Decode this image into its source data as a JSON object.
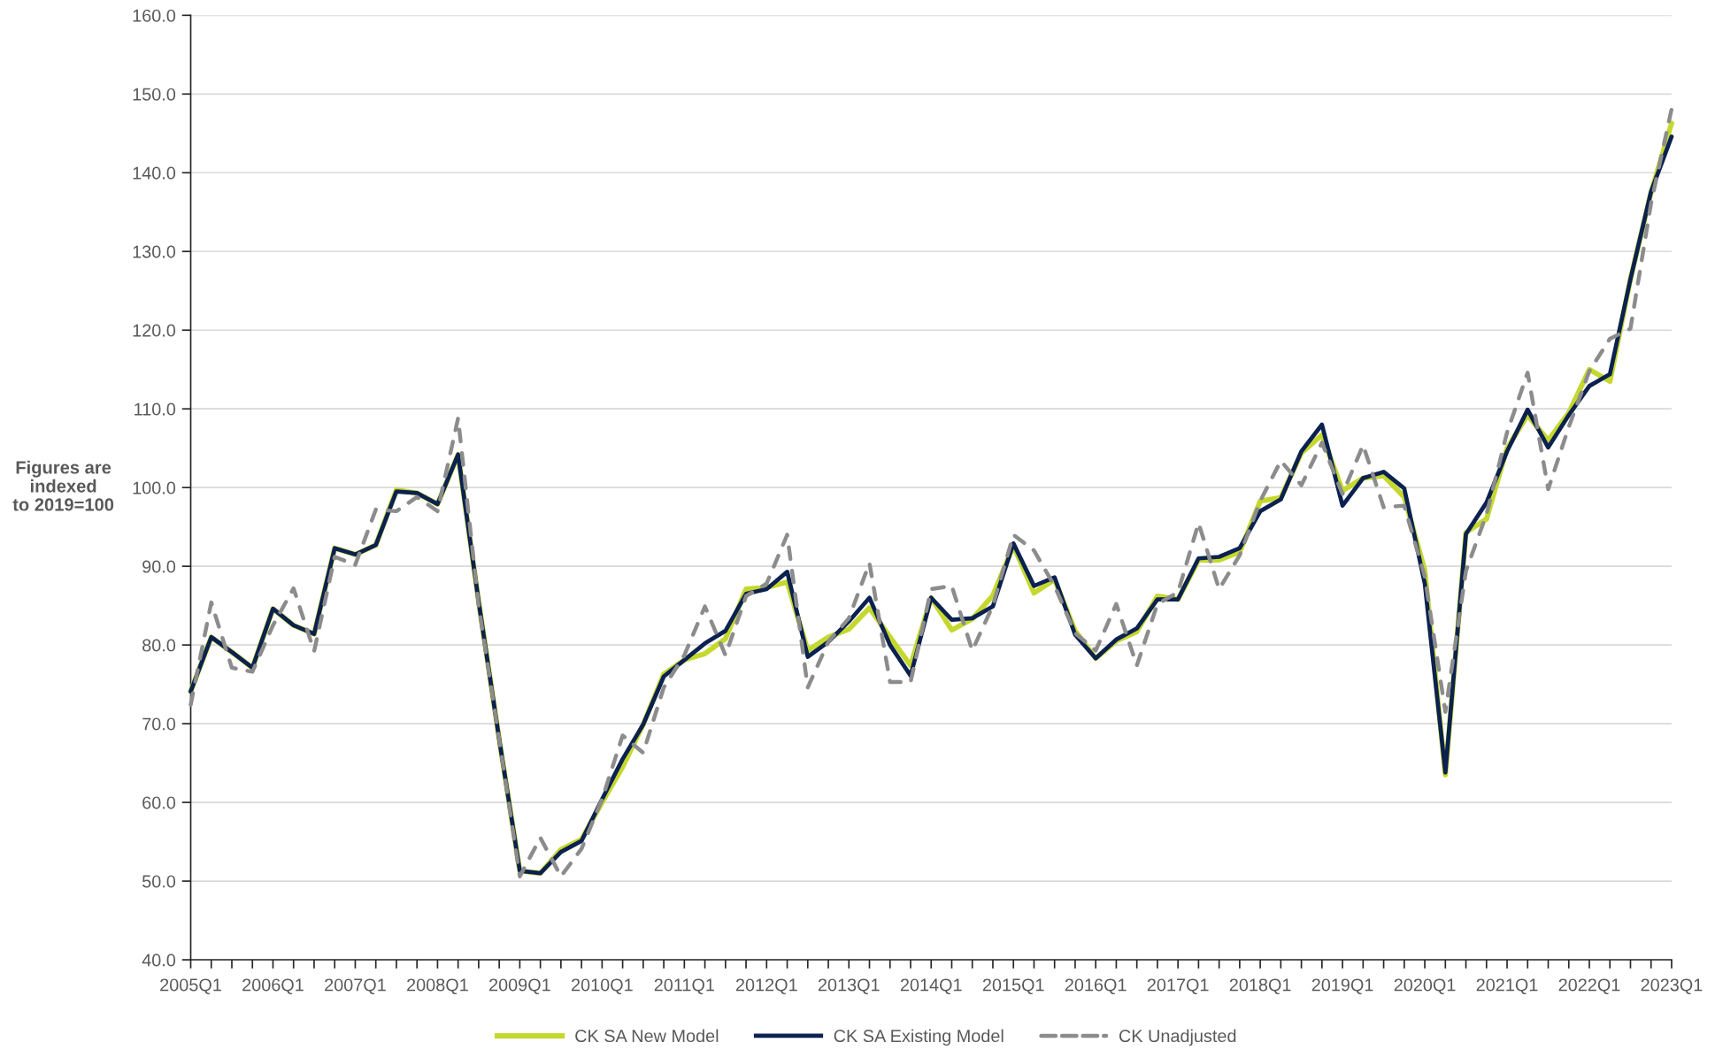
{
  "chart_data": {
    "type": "line",
    "ylabel": "Figures are\nindexed\nto 2019=100",
    "categories": [
      "2005Q1",
      null,
      null,
      null,
      "2006Q1",
      null,
      null,
      null,
      "2007Q1",
      null,
      null,
      null,
      "2008Q1",
      null,
      null,
      null,
      "2009Q1",
      null,
      null,
      null,
      "2010Q1",
      null,
      null,
      null,
      "2011Q1",
      null,
      null,
      null,
      "2012Q1",
      null,
      null,
      null,
      "2013Q1",
      null,
      null,
      null,
      "2014Q1",
      null,
      null,
      null,
      "2015Q1",
      null,
      null,
      null,
      "2016Q1",
      null,
      null,
      null,
      "2017Q1",
      null,
      null,
      null,
      "2018Q1",
      null,
      null,
      null,
      "2019Q1",
      null,
      null,
      null,
      "2020Q1",
      null,
      null,
      null,
      "2021Q1",
      null,
      null,
      null,
      "2022Q1",
      null,
      null,
      null,
      "2023Q1"
    ],
    "ylim": [
      40,
      160
    ],
    "yticks": [
      {
        "value": 40,
        "label": "40.0"
      },
      {
        "value": 50,
        "label": "50.0"
      },
      {
        "value": 60,
        "label": "60.0"
      },
      {
        "value": 70,
        "label": "70.0"
      },
      {
        "value": 80,
        "label": "80.0"
      },
      {
        "value": 90,
        "label": "90.0"
      },
      {
        "value": 100,
        "label": "100.0"
      },
      {
        "value": 110,
        "label": "110.0"
      },
      {
        "value": 120,
        "label": "120.0"
      },
      {
        "value": 130,
        "label": "130.0"
      },
      {
        "value": 140,
        "label": "140.0"
      },
      {
        "value": 150,
        "label": "150.0"
      },
      {
        "value": 160,
        "label": "160.0"
      }
    ],
    "grid": "y",
    "legend": "bottom",
    "series": [
      {
        "name": "CK SA New Model",
        "color": "#c5d82e",
        "line_style": "solid",
        "values": [
          74.1,
          81.0,
          79.1,
          77.1,
          84.6,
          82.5,
          81.4,
          92.3,
          91.5,
          92.7,
          99.7,
          99.3,
          97.9,
          104.2,
          85.5,
          68.0,
          51.3,
          51.0,
          54.0,
          55.3,
          60.0,
          64.5,
          69.9,
          76.3,
          78.1,
          78.9,
          80.8,
          87.1,
          87.3,
          88.0,
          79.3,
          81.0,
          82.0,
          84.7,
          81.0,
          77.4,
          86.0,
          81.9,
          83.3,
          86.3,
          92.6,
          86.6,
          88.3,
          81.8,
          78.3,
          80.5,
          81.7,
          86.2,
          85.8,
          90.8,
          90.8,
          91.8,
          98.3,
          98.7,
          104.4,
          106.7,
          99.6,
          101.2,
          101.5,
          98.8,
          89.5,
          63.5,
          94.3,
          96.0,
          105.0,
          109.2,
          106.0,
          109.5,
          115.0,
          113.5,
          126.5,
          137.5,
          146.3
        ]
      },
      {
        "name": "CK SA Existing Model",
        "color": "#0b2150",
        "line_style": "solid",
        "values": [
          74.1,
          81.0,
          79.1,
          77.1,
          84.6,
          82.5,
          81.4,
          92.3,
          91.5,
          92.7,
          99.5,
          99.3,
          97.9,
          104.2,
          85.5,
          68.0,
          51.3,
          51.0,
          53.7,
          55.1,
          60.4,
          65.5,
          69.9,
          76.0,
          78.1,
          80.2,
          81.8,
          86.5,
          87.1,
          89.3,
          78.5,
          80.4,
          83.0,
          86.0,
          80.0,
          76.1,
          86.0,
          83.2,
          83.4,
          84.9,
          92.9,
          87.5,
          88.6,
          81.3,
          78.3,
          80.7,
          82.1,
          85.8,
          85.8,
          91.0,
          91.2,
          92.3,
          97.0,
          98.5,
          104.6,
          108.0,
          97.7,
          101.2,
          102.0,
          99.9,
          87.8,
          63.8,
          94.1,
          98.1,
          104.6,
          109.9,
          105.1,
          109.2,
          112.9,
          114.4,
          126.5,
          137.6,
          144.6
        ]
      },
      {
        "name": "CK Unadjusted",
        "color": "#8c8c8c",
        "line_style": "dashed",
        "values": [
          72.4,
          85.4,
          77.1,
          76.6,
          82.5,
          87.2,
          79.2,
          91.2,
          90.2,
          97.2,
          97.0,
          98.8,
          97.0,
          108.8,
          85.0,
          68.0,
          50.6,
          55.5,
          50.6,
          54.1,
          60.4,
          68.5,
          66.3,
          74.6,
          78.7,
          84.9,
          78.7,
          86.2,
          87.8,
          94.0,
          74.6,
          80.4,
          83.4,
          90.4,
          75.3,
          75.3,
          87.1,
          87.5,
          79.3,
          85.0,
          94.0,
          92.0,
          87.5,
          81.5,
          79.3,
          85.2,
          77.4,
          85.2,
          86.7,
          95.5,
          87.1,
          91.4,
          98.3,
          103.4,
          100.3,
          105.7,
          99.2,
          105.4,
          97.5,
          97.7,
          88.7,
          71.5,
          89.4,
          96.6,
          107.0,
          114.6,
          99.8,
          107.7,
          114.8,
          118.9,
          120.2,
          136.1,
          148.1
        ]
      }
    ]
  }
}
